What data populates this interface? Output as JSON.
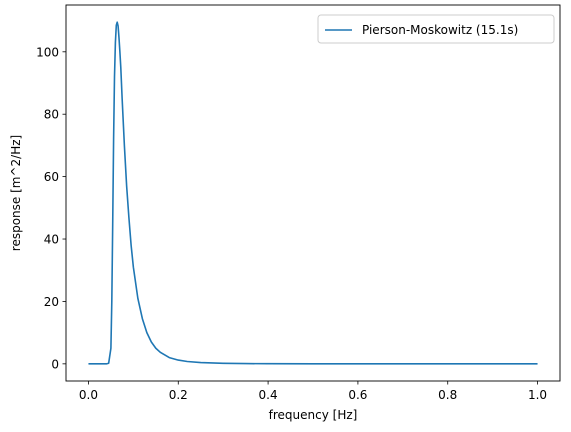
{
  "chart_data": {
    "type": "line",
    "title": "",
    "xlabel": "frequency [Hz]",
    "ylabel": "response [m^2/Hz]",
    "xlim": [
      -0.05,
      1.05
    ],
    "ylim": [
      -5.5,
      115
    ],
    "xticks": [
      0.0,
      0.2,
      0.4,
      0.6,
      0.8,
      1.0
    ],
    "xtick_labels": [
      "0.0",
      "0.2",
      "0.4",
      "0.6",
      "0.8",
      "1.0"
    ],
    "yticks": [
      0,
      20,
      40,
      60,
      80,
      100
    ],
    "ytick_labels": [
      "0",
      "20",
      "40",
      "60",
      "80",
      "100"
    ],
    "grid": false,
    "legend_position": "top-right",
    "series": [
      {
        "name": "Pierson-Moskowitz (15.1s)",
        "color": "#1f77b4",
        "x": [
          0.0,
          0.02,
          0.04,
          0.045,
          0.05,
          0.052,
          0.054,
          0.056,
          0.058,
          0.06,
          0.062,
          0.064,
          0.066,
          0.068,
          0.07,
          0.072,
          0.075,
          0.08,
          0.085,
          0.09,
          0.095,
          0.1,
          0.11,
          0.12,
          0.13,
          0.14,
          0.15,
          0.16,
          0.18,
          0.2,
          0.22,
          0.25,
          0.3,
          0.35,
          0.4,
          0.5,
          0.6,
          0.8,
          1.0
        ],
        "y": [
          0,
          0,
          0,
          0.2,
          5,
          20,
          45,
          72,
          92,
          103,
          108.5,
          109.5,
          108.3,
          104.5,
          100,
          95,
          85,
          70,
          57,
          47,
          38,
          31,
          21,
          14.5,
          10,
          7,
          5,
          3.7,
          2,
          1.2,
          0.75,
          0.4,
          0.17,
          0.08,
          0.04,
          0.01,
          0.005,
          0.001,
          0
        ]
      }
    ]
  }
}
